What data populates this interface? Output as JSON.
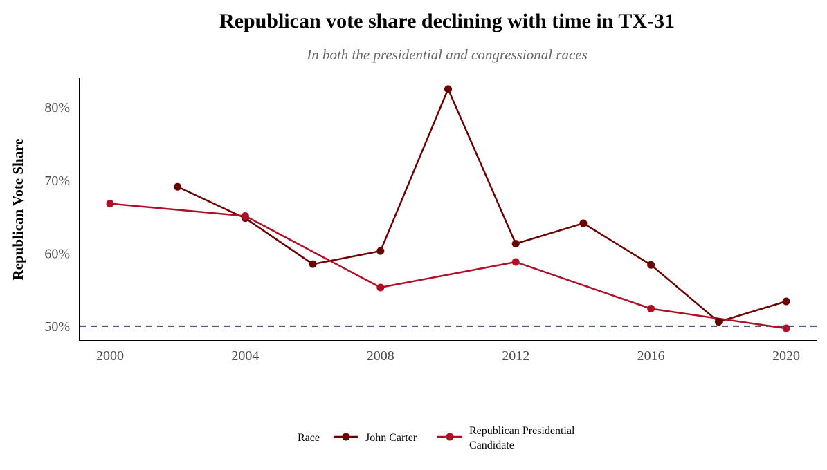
{
  "chart_data": {
    "type": "line",
    "title": "Republican vote share declining with time in TX-31",
    "subtitle": "In both the presidential and congressional races",
    "xlabel": "",
    "ylabel": "Republican Vote Share",
    "xlim": [
      1999.1,
      2020.9
    ],
    "ylim": [
      48.0,
      84.0
    ],
    "x_ticks": [
      2000,
      2004,
      2008,
      2012,
      2016,
      2020
    ],
    "y_ticks": [
      50,
      60,
      70,
      80
    ],
    "y_tick_labels": [
      "50%",
      "60%",
      "70%",
      "80%"
    ],
    "grid": false,
    "reference_line": {
      "y": 50,
      "style": "dashed",
      "color": "#3b4660"
    },
    "legend": {
      "position": "bottom",
      "title": "Race",
      "entries": [
        {
          "label": "John Carter",
          "color": "#6b0000"
        },
        {
          "label": "Republican Presidential Candidate",
          "label_lines": [
            "Republican Presidential",
            "Candidate"
          ],
          "color": "#b01027"
        }
      ]
    },
    "series": [
      {
        "name": "John Carter",
        "color": "#6b0000",
        "points": [
          {
            "x": 2002,
            "y": 69.1
          },
          {
            "x": 2004,
            "y": 64.8
          },
          {
            "x": 2006,
            "y": 58.5
          },
          {
            "x": 2008,
            "y": 60.3
          },
          {
            "x": 2010,
            "y": 82.5
          },
          {
            "x": 2012,
            "y": 61.3
          },
          {
            "x": 2014,
            "y": 64.1
          },
          {
            "x": 2016,
            "y": 58.4
          },
          {
            "x": 2018,
            "y": 50.6
          },
          {
            "x": 2020,
            "y": 53.4
          }
        ]
      },
      {
        "name": "Republican Presidential Candidate",
        "color": "#b01027",
        "points": [
          {
            "x": 2000,
            "y": 66.8
          },
          {
            "x": 2004,
            "y": 65.1
          },
          {
            "x": 2008,
            "y": 55.3
          },
          {
            "x": 2012,
            "y": 58.8
          },
          {
            "x": 2016,
            "y": 52.4
          },
          {
            "x": 2020,
            "y": 49.7
          }
        ]
      }
    ]
  }
}
